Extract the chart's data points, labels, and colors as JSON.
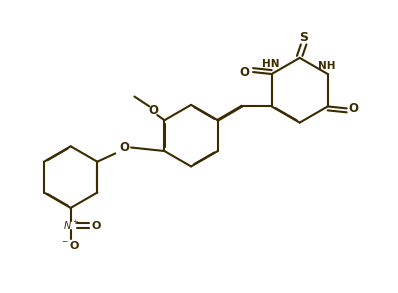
{
  "line_color": "#3d2b00",
  "bg_color": "#ffffff",
  "lw": 1.5,
  "dbo": 0.012,
  "figsize": [
    3.98,
    2.93
  ],
  "dpi": 100,
  "xlim": [
    0,
    10
  ],
  "ylim": [
    0,
    7.35
  ]
}
